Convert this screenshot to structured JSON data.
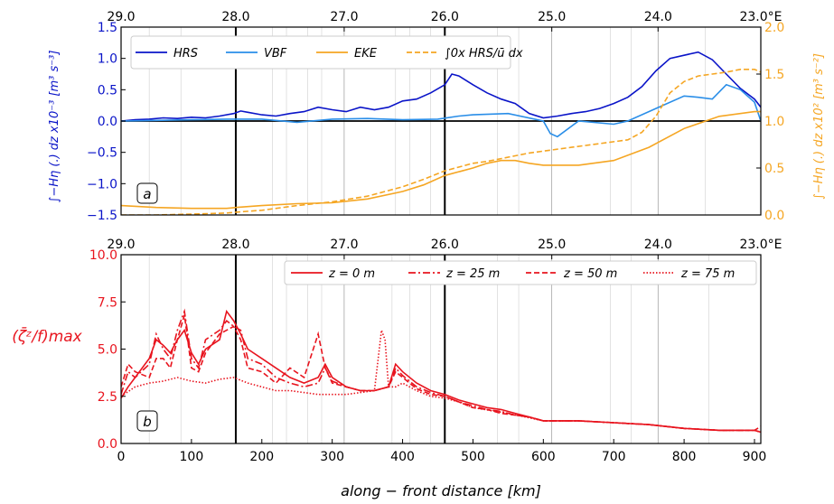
{
  "chart_data": [
    {
      "panel_label": "a",
      "type": "line",
      "top_axis": {
        "ticks": [
          "29.0",
          "28.0",
          "27.0",
          "26.0",
          "25.0",
          "24.0",
          "23.0°E"
        ],
        "values_km": [
          0,
          163,
          317,
          460,
          612,
          763,
          909
        ]
      },
      "xlim": [
        0,
        909
      ],
      "ylim_left": [
        -1.5,
        1.5
      ],
      "ylim_right": [
        0.0,
        2.0
      ],
      "left_ticks": [
        "-1.5",
        "-1.0",
        "-0.5",
        "0.0",
        "0.5",
        "1.0",
        "1.5"
      ],
      "right_ticks": [
        "0.0",
        "0.5",
        "1.0",
        "1.5",
        "2.0"
      ],
      "ylabel_left": "∫−Hη (.) dz x10⁻³ [m³ s⁻³]",
      "ylabel_right": "∫−Hη (.) dz x10² [m³ s⁻²]",
      "series": [
        {
          "name": "HRS",
          "color": "#0a14c8",
          "style": "solid",
          "axis": "left",
          "x": [
            0,
            20,
            40,
            60,
            80,
            100,
            120,
            140,
            160,
            170,
            180,
            200,
            220,
            240,
            260,
            280,
            300,
            320,
            340,
            360,
            380,
            400,
            420,
            440,
            460,
            470,
            480,
            500,
            520,
            540,
            560,
            580,
            600,
            620,
            640,
            660,
            680,
            700,
            720,
            740,
            760,
            780,
            800,
            820,
            840,
            860,
            880,
            900,
            909
          ],
          "y": [
            0.0,
            0.02,
            0.03,
            0.05,
            0.04,
            0.06,
            0.05,
            0.08,
            0.12,
            0.16,
            0.14,
            0.1,
            0.08,
            0.12,
            0.15,
            0.22,
            0.18,
            0.15,
            0.22,
            0.18,
            0.22,
            0.32,
            0.35,
            0.45,
            0.58,
            0.75,
            0.72,
            0.58,
            0.45,
            0.35,
            0.28,
            0.12,
            0.05,
            0.08,
            0.12,
            0.15,
            0.2,
            0.28,
            0.38,
            0.55,
            0.8,
            1.0,
            1.05,
            1.1,
            0.98,
            0.75,
            0.52,
            0.35,
            0.22
          ]
        },
        {
          "name": "VBF",
          "color": "#2a8ee8",
          "style": "solid",
          "axis": "left",
          "x": [
            0,
            50,
            100,
            150,
            200,
            250,
            300,
            350,
            400,
            450,
            480,
            500,
            550,
            600,
            610,
            620,
            650,
            700,
            720,
            760,
            800,
            820,
            840,
            860,
            880,
            900,
            909
          ],
          "y": [
            0.0,
            0.01,
            0.02,
            0.03,
            0.03,
            -0.02,
            0.03,
            0.04,
            0.02,
            0.03,
            0.08,
            0.1,
            0.12,
            0.0,
            -0.2,
            -0.25,
            0.0,
            -0.05,
            0.0,
            0.2,
            0.4,
            0.38,
            0.35,
            0.58,
            0.5,
            0.3,
            0.0
          ]
        },
        {
          "name": "EKE",
          "color": "#f5a623",
          "style": "solid",
          "axis": "right",
          "x": [
            0,
            50,
            100,
            150,
            163,
            200,
            250,
            300,
            350,
            400,
            430,
            460,
            500,
            520,
            540,
            560,
            580,
            600,
            650,
            700,
            750,
            800,
            850,
            900,
            909
          ],
          "y": [
            0.1,
            0.08,
            0.07,
            0.07,
            0.08,
            0.1,
            0.12,
            0.13,
            0.17,
            0.25,
            0.32,
            0.42,
            0.5,
            0.55,
            0.58,
            0.58,
            0.55,
            0.53,
            0.53,
            0.58,
            0.72,
            0.92,
            1.05,
            1.1,
            1.1
          ]
        },
        {
          "name": "∫0x HRS/ū dx",
          "color": "#f5a623",
          "style": "dashed",
          "axis": "right",
          "x": [
            0,
            50,
            100,
            150,
            163,
            200,
            250,
            300,
            350,
            400,
            430,
            460,
            500,
            520,
            540,
            560,
            580,
            600,
            640,
            680,
            720,
            740,
            760,
            780,
            800,
            820,
            840,
            860,
            880,
            900,
            909
          ],
          "y": [
            0.0,
            0.0,
            0.01,
            0.02,
            0.03,
            0.05,
            0.1,
            0.14,
            0.2,
            0.3,
            0.38,
            0.47,
            0.55,
            0.57,
            0.6,
            0.63,
            0.66,
            0.68,
            0.72,
            0.76,
            0.8,
            0.88,
            1.05,
            1.3,
            1.42,
            1.48,
            1.5,
            1.52,
            1.55,
            1.55,
            1.52
          ]
        }
      ],
      "legend": [
        "HRS",
        "VBF",
        "EKE",
        "∫0x HRS/ū dx"
      ],
      "vlines_thick_km": [
        163,
        460
      ],
      "grid": true
    },
    {
      "panel_label": "b",
      "type": "line",
      "top_axis": {
        "ticks": [
          "29.0",
          "28.0",
          "27.0",
          "26.0",
          "25.0",
          "24.0",
          "23.0°E"
        ],
        "values_km": [
          0,
          163,
          317,
          460,
          612,
          763,
          909
        ]
      },
      "xlim": [
        0,
        909
      ],
      "ylim": [
        0.0,
        10.0
      ],
      "x_ticks": [
        "0",
        "100",
        "200",
        "300",
        "400",
        "500",
        "600",
        "700",
        "800",
        "900"
      ],
      "y_ticks": [
        "0.0",
        "2.5",
        "5.0",
        "7.5",
        "10.0"
      ],
      "xlabel": "along − front distance [km]",
      "ylabel": "(ζ̄ᶻ/f)max",
      "series": [
        {
          "name": "z = 0 m",
          "color": "#e8141e",
          "style": "solid",
          "x": [
            0,
            10,
            20,
            40,
            50,
            60,
            70,
            80,
            90,
            100,
            110,
            120,
            140,
            150,
            160,
            170,
            180,
            200,
            220,
            240,
            260,
            280,
            290,
            300,
            320,
            340,
            360,
            380,
            390,
            400,
            420,
            440,
            460,
            480,
            500,
            520,
            540,
            560,
            580,
            600,
            650,
            700,
            750,
            800,
            850,
            900,
            909
          ],
          "y": [
            2.4,
            3.0,
            3.5,
            4.5,
            5.5,
            5.2,
            4.8,
            5.5,
            6.0,
            4.8,
            4.2,
            5.0,
            5.5,
            7.0,
            6.5,
            5.8,
            5.0,
            4.5,
            4.0,
            3.5,
            3.2,
            3.5,
            4.2,
            3.5,
            3.0,
            2.8,
            2.8,
            3.0,
            4.2,
            3.8,
            3.2,
            2.8,
            2.6,
            2.3,
            2.1,
            1.9,
            1.8,
            1.6,
            1.4,
            1.2,
            1.2,
            1.1,
            1.0,
            0.8,
            0.7,
            0.7,
            0.6
          ]
        },
        {
          "name": "z = 25 m",
          "color": "#e8141e",
          "style": "dashdot",
          "x": [
            0,
            10,
            20,
            40,
            50,
            60,
            70,
            80,
            90,
            100,
            110,
            120,
            140,
            150,
            160,
            170,
            180,
            200,
            220,
            240,
            260,
            280,
            290,
            300,
            320,
            340,
            360,
            380,
            390,
            400,
            420,
            440,
            460,
            480,
            500,
            520,
            540,
            560,
            580,
            600,
            650,
            700,
            750,
            800,
            850,
            900,
            909
          ],
          "y": [
            2.6,
            3.8,
            3.5,
            4.2,
            5.8,
            5.0,
            4.5,
            6.0,
            7.0,
            4.5,
            4.0,
            5.5,
            6.0,
            6.5,
            6.2,
            6.0,
            4.5,
            4.2,
            3.5,
            3.2,
            3.0,
            3.2,
            4.0,
            3.3,
            3.0,
            2.8,
            2.8,
            3.0,
            4.0,
            3.6,
            3.0,
            2.7,
            2.5,
            2.2,
            2.0,
            1.8,
            1.7,
            1.5,
            1.4,
            1.2,
            1.2,
            1.1,
            1.0,
            0.8,
            0.7,
            0.7,
            0.6
          ]
        },
        {
          "name": "z = 50 m",
          "color": "#e8141e",
          "style": "dashed",
          "x": [
            0,
            10,
            20,
            40,
            50,
            60,
            70,
            80,
            90,
            100,
            110,
            120,
            140,
            150,
            160,
            170,
            180,
            200,
            220,
            240,
            260,
            280,
            290,
            300,
            320,
            340,
            360,
            380,
            390,
            400,
            420,
            440,
            460,
            480,
            500,
            520,
            540,
            560,
            580,
            600,
            650,
            700,
            750,
            800,
            850,
            900,
            909
          ],
          "y": [
            3.0,
            4.2,
            3.8,
            3.5,
            4.5,
            4.5,
            4.0,
            5.5,
            6.8,
            4.0,
            3.8,
            4.8,
            5.8,
            6.0,
            6.2,
            5.5,
            4.0,
            3.8,
            3.2,
            4.0,
            3.5,
            5.8,
            4.0,
            3.2,
            3.0,
            2.8,
            2.8,
            3.0,
            3.8,
            3.5,
            2.9,
            2.6,
            2.5,
            2.2,
            1.9,
            1.8,
            1.6,
            1.5,
            1.4,
            1.2,
            1.2,
            1.1,
            1.0,
            0.8,
            0.7,
            0.7,
            0.9
          ]
        },
        {
          "name": "z = 75 m",
          "color": "#e8141e",
          "style": "dotted",
          "x": [
            0,
            20,
            40,
            60,
            80,
            100,
            120,
            140,
            160,
            180,
            200,
            220,
            240,
            260,
            280,
            300,
            320,
            340,
            360,
            370,
            375,
            380,
            390,
            400,
            420,
            440,
            460,
            480,
            500,
            550,
            600,
            650,
            700,
            750,
            800,
            850,
            900,
            909
          ],
          "y": [
            2.5,
            3.0,
            3.2,
            3.3,
            3.5,
            3.3,
            3.2,
            3.4,
            3.5,
            3.2,
            3.0,
            2.8,
            2.8,
            2.7,
            2.6,
            2.6,
            2.6,
            2.7,
            2.8,
            6.0,
            5.5,
            3.0,
            3.0,
            3.2,
            2.8,
            2.5,
            2.4,
            2.2,
            1.9,
            1.6,
            1.2,
            1.2,
            1.1,
            1.0,
            0.8,
            0.7,
            0.7,
            0.6
          ]
        }
      ],
      "legend": [
        "z = 0 m",
        "z = 25 m",
        "z = 50 m",
        "z = 75 m"
      ],
      "vlines_thick_km": [
        163,
        460
      ],
      "grid": true
    }
  ]
}
